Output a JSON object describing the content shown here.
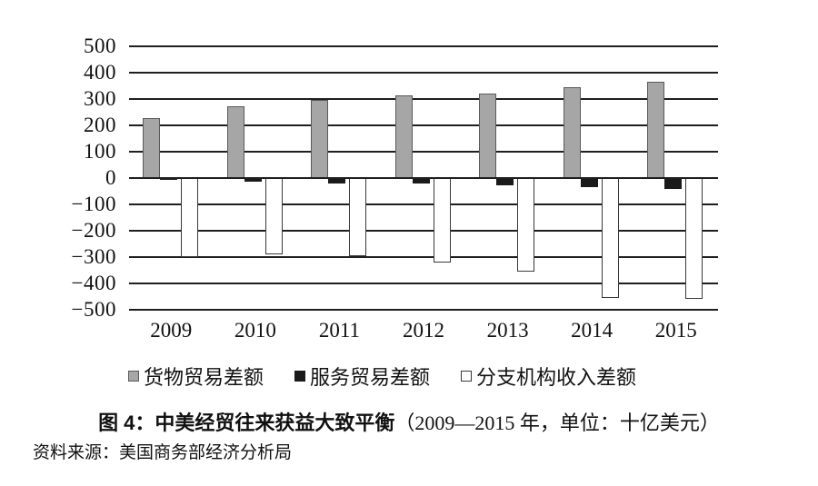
{
  "figure": {
    "title_bold": "图 4：中美经贸往来获益大致平衡",
    "title_normal": "（2009—2015 年，单位：十亿美元）",
    "source": "资料来源：美国商务部经济分析局"
  },
  "chart_data": {
    "type": "bar",
    "title": "图 4：中美经贸往来获益大致平衡（2009—2015 年，单位：十亿美元）",
    "categories": [
      "2009",
      "2010",
      "2011",
      "2012",
      "2013",
      "2014",
      "2015"
    ],
    "series": [
      {
        "name": "货物贸易差额",
        "color": "#a6a6a6",
        "border": "#5a5a5a",
        "values": [
          227,
          273,
          295,
          315,
          319,
          345,
          367
        ]
      },
      {
        "name": "服务贸易差额",
        "color": "#1a1a1a",
        "border": "#1a1a1a",
        "values": [
          -8,
          -14,
          -20,
          -22,
          -26,
          -35,
          -40
        ]
      },
      {
        "name": "分支机构收入差额",
        "color": "#ffffff",
        "border": "#3a3a3a",
        "values": [
          -300,
          -290,
          -295,
          -320,
          -355,
          -455,
          -460
        ]
      }
    ],
    "xlabel": "",
    "ylabel": "",
    "ylim": [
      -500,
      500
    ],
    "ytick_step": 100,
    "yticks": [
      "500",
      "400",
      "300",
      "200",
      "100",
      "0",
      "−100",
      "−200",
      "−300",
      "−400",
      "−500"
    ],
    "grid": true,
    "legend_position": "bottom",
    "unit": "十亿美元"
  }
}
